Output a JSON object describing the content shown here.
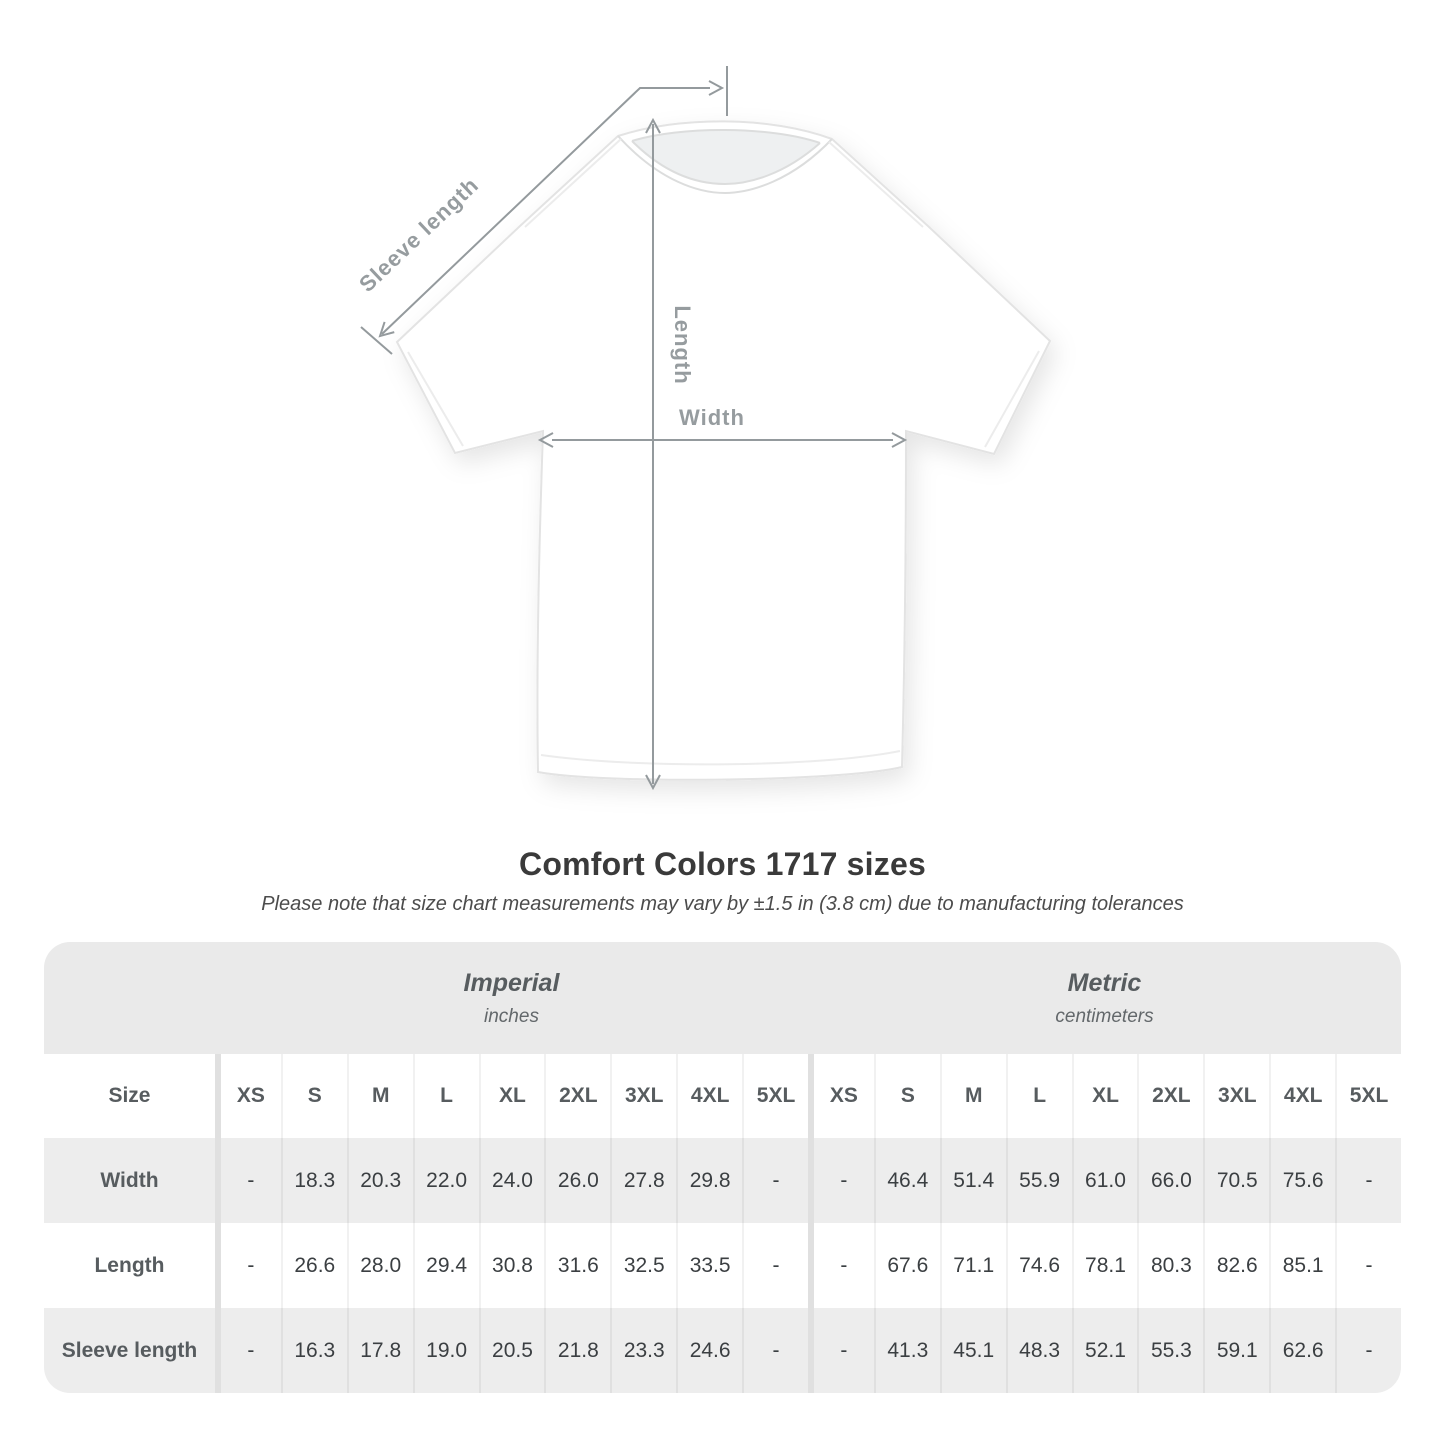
{
  "page": {
    "title": "Comfort Colors 1717 sizes",
    "note": "Please note that size chart measurements may vary by ±1.5 in (3.8 cm) due to manufacturing tolerances"
  },
  "diagram": {
    "sleeve_label": "Sleeve length",
    "length_label": "Length",
    "width_label": "Width"
  },
  "chart_data": {
    "type": "table",
    "title": "Comfort Colors 1717 sizes",
    "corner_header": "Size",
    "unit_groups": [
      {
        "label": "Imperial",
        "unit": "inches"
      },
      {
        "label": "Metric",
        "unit": "centimeters"
      }
    ],
    "sizes": [
      "XS",
      "S",
      "M",
      "L",
      "XL",
      "2XL",
      "3XL",
      "4XL",
      "5XL"
    ],
    "rows": [
      {
        "label": "Width",
        "imperial": [
          "-",
          "18.3",
          "20.3",
          "22.0",
          "24.0",
          "26.0",
          "27.8",
          "29.8",
          "-"
        ],
        "metric": [
          "-",
          "46.4",
          "51.4",
          "55.9",
          "61.0",
          "66.0",
          "70.5",
          "75.6",
          "-"
        ]
      },
      {
        "label": "Length",
        "imperial": [
          "-",
          "26.6",
          "28.0",
          "29.4",
          "30.8",
          "31.6",
          "32.5",
          "33.5",
          "-"
        ],
        "metric": [
          "-",
          "67.6",
          "71.1",
          "74.6",
          "78.1",
          "80.3",
          "82.6",
          "85.1",
          "-"
        ]
      },
      {
        "label": "Sleeve length",
        "imperial": [
          "-",
          "16.3",
          "17.8",
          "19.0",
          "20.5",
          "21.8",
          "23.3",
          "24.6",
          "-"
        ],
        "metric": [
          "-",
          "41.3",
          "45.1",
          "48.3",
          "52.1",
          "55.3",
          "59.1",
          "62.6",
          "-"
        ]
      }
    ]
  },
  "colors": {
    "band_gray": "#eaeaea",
    "stripe_gray": "#ededed",
    "header_text": "#575c5f",
    "value_text": "#3b3f42",
    "annotation_gray": "#969c9f"
  }
}
